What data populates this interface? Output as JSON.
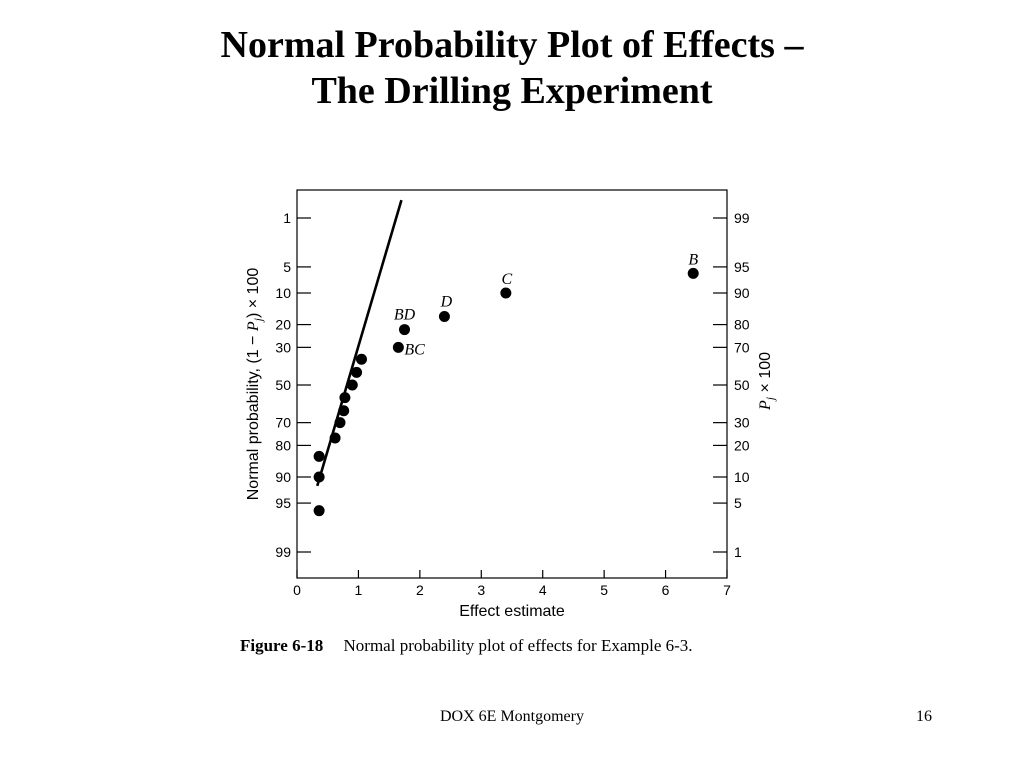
{
  "slide": {
    "title_line1": "Normal Probability Plot of Effects –",
    "title_line2": "The Drilling Experiment",
    "caption_label": "Figure 6-18",
    "caption_text": "Normal probability plot of effects for Example 6-3.",
    "footer": "DOX 6E Montgomery",
    "page_number": "16"
  },
  "chart_data": {
    "type": "scatter",
    "xlabel": "Effect estimate",
    "ylabel_left": "Normal probability, (1 − P_j) × 100",
    "ylabel_right": "P_j × 100",
    "xlim": [
      0,
      7
    ],
    "x_ticks": [
      0,
      1,
      2,
      3,
      4,
      5,
      6,
      7
    ],
    "left_ticks": [
      1,
      5,
      10,
      20,
      30,
      50,
      70,
      80,
      90,
      95,
      99
    ],
    "right_ticks": [
      99,
      95,
      90,
      80,
      70,
      50,
      30,
      20,
      10,
      5,
      1
    ],
    "points": [
      {
        "x": 6.45,
        "p": 6,
        "label": "B"
      },
      {
        "x": 3.4,
        "p": 10,
        "label": "C"
      },
      {
        "x": 2.4,
        "p": 17,
        "label": "D"
      },
      {
        "x": 1.75,
        "p": 22,
        "label": "BD"
      },
      {
        "x": 1.65,
        "p": 30,
        "label": "BC"
      },
      {
        "x": 1.05,
        "p": 36,
        "label": ""
      },
      {
        "x": 0.97,
        "p": 43,
        "label": ""
      },
      {
        "x": 0.9,
        "p": 50,
        "label": ""
      },
      {
        "x": 0.78,
        "p": 57,
        "label": ""
      },
      {
        "x": 0.76,
        "p": 64,
        "label": ""
      },
      {
        "x": 0.7,
        "p": 70,
        "label": ""
      },
      {
        "x": 0.62,
        "p": 77,
        "label": ""
      },
      {
        "x": 0.36,
        "p": 84,
        "label": ""
      },
      {
        "x": 0.36,
        "p": 90,
        "label": ""
      },
      {
        "x": 0.36,
        "p": 96,
        "label": ""
      }
    ],
    "fit_line": {
      "x": [
        0.33,
        1.7
      ],
      "p": [
        92,
        0.5
      ]
    }
  }
}
